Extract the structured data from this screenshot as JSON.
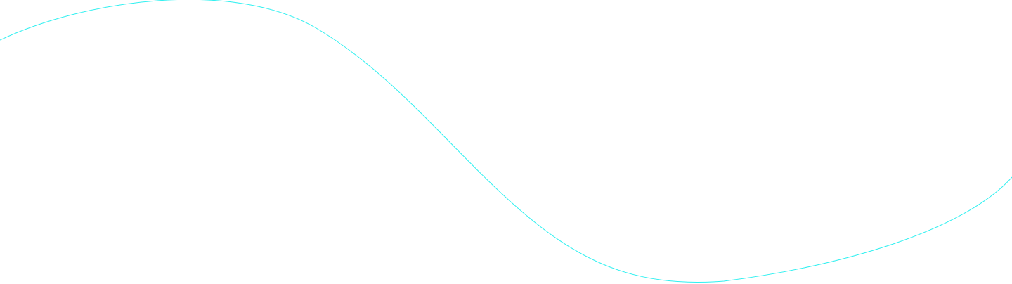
{
  "background_color": "#ffffff",
  "curve": {
    "stroke_color": "#2ff0f0",
    "shape": "wave"
  }
}
